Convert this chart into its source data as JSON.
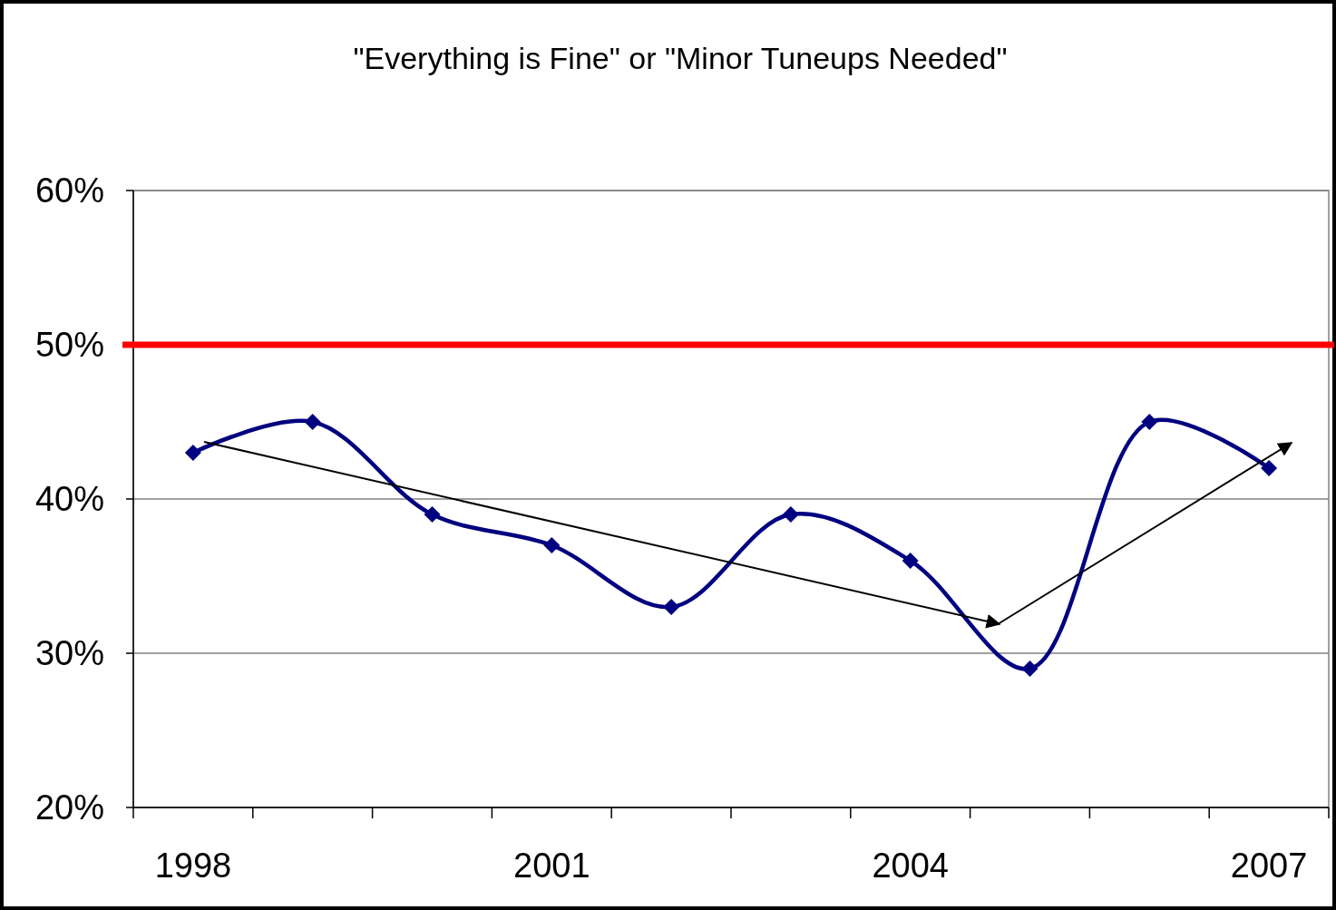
{
  "chart_data": {
    "type": "line",
    "title": "\"Everything is Fine\" or \"Minor Tuneups Needed\"",
    "categories": [
      "1998",
      null,
      null,
      "2001",
      null,
      null,
      "2004",
      null,
      null,
      "2007"
    ],
    "series": [
      {
        "color": "#000080",
        "values": [
          43,
          45,
          39,
          37,
          33,
          39,
          36,
          29,
          45,
          42
        ]
      }
    ],
    "ylim": [
      20,
      60
    ],
    "yticks": [
      {
        "value": 20,
        "label": "20%"
      },
      {
        "value": 30,
        "label": "30%"
      },
      {
        "value": 40,
        "label": "40%"
      },
      {
        "value": 50,
        "label": "50%"
      },
      {
        "value": 60,
        "label": "60%"
      }
    ],
    "grid": "y",
    "marker": "diamond",
    "line_style": "solid",
    "ref_lines": [
      {
        "axis": "y",
        "value": 50,
        "color": "#ff0000"
      }
    ]
  }
}
